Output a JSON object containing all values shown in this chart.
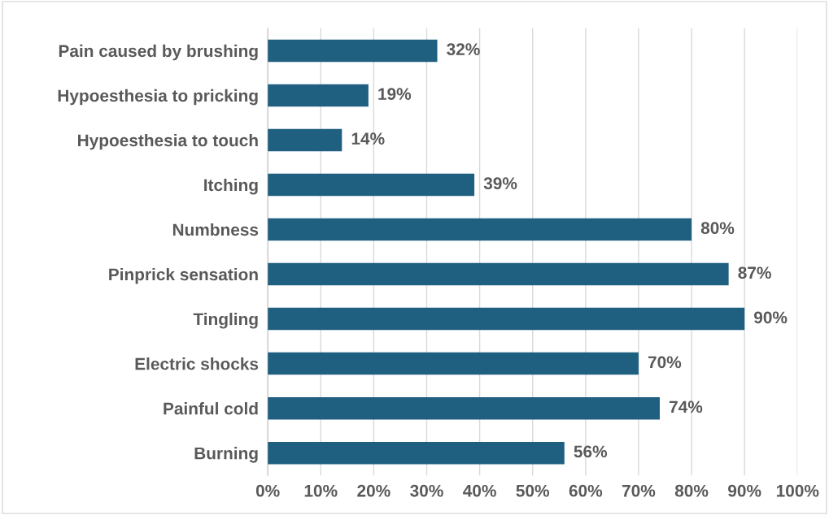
{
  "chart_data": {
    "type": "bar",
    "orientation": "horizontal",
    "categories": [
      "Pain caused by brushing",
      "Hypoesthesia to pricking",
      "Hypoesthesia to touch",
      "Itching",
      "Numbness",
      "Pinprick sensation",
      "Tingling",
      "Electric shocks",
      "Painful cold",
      "Burning"
    ],
    "values": [
      32,
      19,
      14,
      39,
      80,
      87,
      90,
      70,
      74,
      56
    ],
    "value_labels": [
      "32%",
      "19%",
      "14%",
      "39%",
      "80%",
      "87%",
      "90%",
      "70%",
      "74%",
      "56%"
    ],
    "color": "#1f5f80",
    "xlim": [
      0,
      100
    ],
    "xticks": [
      {
        "value": 0,
        "label": "0%"
      },
      {
        "value": 10,
        "label": "10%"
      },
      {
        "value": 20,
        "label": "20%"
      },
      {
        "value": 30,
        "label": "30%"
      },
      {
        "value": 40,
        "label": "40%"
      },
      {
        "value": 50,
        "label": "50%"
      },
      {
        "value": 60,
        "label": "60%"
      },
      {
        "value": 70,
        "label": "70%"
      },
      {
        "value": 80,
        "label": "80%"
      },
      {
        "value": 90,
        "label": "90%"
      },
      {
        "value": 100,
        "label": "100%"
      }
    ],
    "grid": "x"
  }
}
